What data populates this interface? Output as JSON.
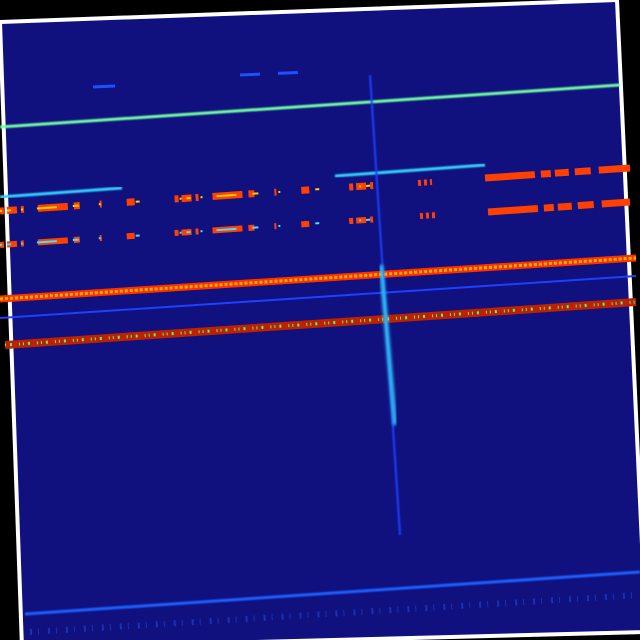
{
  "image": {
    "kind": "spectrogram",
    "colormap": "jet",
    "rotated": true,
    "colors": {
      "outer_background": "#000000",
      "border": "#ffffff",
      "field": "#10107f",
      "weak_signal": "#1030ff",
      "medium_signal": "#20c0ff",
      "strong_signal": "#80ff80",
      "peak_signal": "#ff3000",
      "hot_signal": "#ffb000"
    }
  }
}
